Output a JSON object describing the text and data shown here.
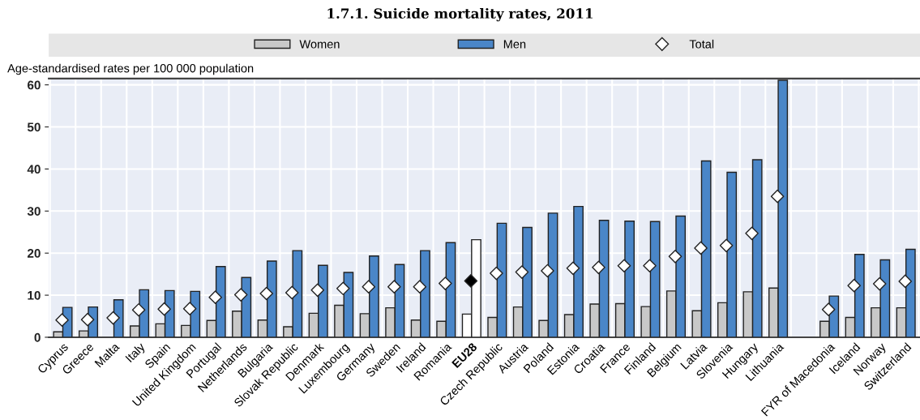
{
  "chart_data": {
    "type": "bar",
    "title": "1.7.1. Suicide mortality rates, 2011",
    "ylabel": "Age-standardised rates per 100 000 population",
    "categories": [
      "Cyprus",
      "Greece",
      "Malta",
      "Italy",
      "Spain",
      "United Kingdom",
      "Portugal",
      "Netherlands",
      "Bulgaria",
      "Slovak Republic",
      "Denmark",
      "Luxembourg",
      "Germany",
      "Sweden",
      "Ireland",
      "Romania",
      "EU28",
      "Czech Republic",
      "Austria",
      "Poland",
      "Estonia",
      "Croatia",
      "France",
      "Finland",
      "Belgium",
      "Latvia",
      "Slovenia",
      "Hungary",
      "Lithuania",
      null,
      "FYR of Macedonia",
      "Iceland",
      "Norway",
      "Switzerland"
    ],
    "series": [
      {
        "name": "Women",
        "color": "#c8c8c8",
        "colors": [
          "#c8c8c8",
          "#c8c8c8",
          "#c8c8c8",
          "#c8c8c8",
          "#c8c8c8",
          "#c8c8c8",
          "#c8c8c8",
          "#c8c8c8",
          "#c8c8c8",
          "#c8c8c8",
          "#c8c8c8",
          "#c8c8c8",
          "#c8c8c8",
          "#c8c8c8",
          "#c8c8c8",
          "#c8c8c8",
          "#ffffff",
          "#c8c8c8",
          "#c8c8c8",
          "#c8c8c8",
          "#c8c8c8",
          "#c8c8c8",
          "#c8c8c8",
          "#c8c8c8",
          "#c8c8c8",
          "#c8c8c8",
          "#c8c8c8",
          "#c8c8c8",
          "#c8c8c8",
          "#c8c8c8",
          "#c8c8c8",
          "#c8c8c8",
          "#c8c8c8",
          "#c8c8c8"
        ],
        "values": [
          1.3,
          1.5,
          null,
          2.7,
          3.2,
          2.8,
          4.0,
          6.2,
          4.1,
          2.5,
          5.7,
          7.6,
          5.6,
          7.0,
          4.1,
          3.8,
          5.5,
          4.7,
          7.2,
          4.0,
          5.4,
          7.9,
          8.0,
          7.3,
          11.0,
          6.3,
          8.2,
          10.8,
          11.7,
          null,
          3.8,
          4.7,
          7.0,
          7.0
        ]
      },
      {
        "name": "Men",
        "color": "#4a86c8",
        "colors": [
          "#4a86c8",
          "#4a86c8",
          "#4a86c8",
          "#4a86c8",
          "#4a86c8",
          "#4a86c8",
          "#4a86c8",
          "#4a86c8",
          "#4a86c8",
          "#4a86c8",
          "#4a86c8",
          "#4a86c8",
          "#4a86c8",
          "#4a86c8",
          "#4a86c8",
          "#4a86c8",
          "#ffffff",
          "#4a86c8",
          "#4a86c8",
          "#4a86c8",
          "#4a86c8",
          "#4a86c8",
          "#4a86c8",
          "#4a86c8",
          "#4a86c8",
          "#4a86c8",
          "#4a86c8",
          "#4a86c8",
          "#4a86c8",
          "#4a86c8",
          "#4a86c8",
          "#4a86c8",
          "#4a86c8",
          "#4a86c8"
        ],
        "values": [
          7.1,
          7.2,
          8.9,
          11.3,
          11.1,
          10.9,
          16.8,
          14.2,
          18.1,
          20.6,
          17.1,
          15.4,
          19.3,
          17.3,
          20.6,
          22.5,
          23.2,
          27.1,
          26.1,
          29.5,
          31.1,
          27.8,
          27.6,
          27.5,
          28.8,
          41.9,
          39.2,
          42.2,
          61.1,
          null,
          9.8,
          19.7,
          18.4,
          20.9
        ]
      },
      {
        "name": "Total",
        "type": "scatter",
        "marker": "diamond",
        "color": "#ffffff",
        "colors": [
          "#ffffff",
          "#ffffff",
          "#ffffff",
          "#ffffff",
          "#ffffff",
          "#ffffff",
          "#ffffff",
          "#ffffff",
          "#ffffff",
          "#ffffff",
          "#ffffff",
          "#ffffff",
          "#ffffff",
          "#ffffff",
          "#ffffff",
          "#ffffff",
          "#000000",
          "#ffffff",
          "#ffffff",
          "#ffffff",
          "#ffffff",
          "#ffffff",
          "#ffffff",
          "#ffffff",
          "#ffffff",
          "#ffffff",
          "#ffffff",
          "#ffffff",
          "#ffffff",
          "#ffffff",
          "#ffffff",
          "#ffffff",
          "#ffffff",
          "#ffffff"
        ],
        "values": [
          4.1,
          4.2,
          4.6,
          6.5,
          6.7,
          6.8,
          9.5,
          10.1,
          10.4,
          10.6,
          11.2,
          11.6,
          12.0,
          12.0,
          12.0,
          12.8,
          13.4,
          15.2,
          15.5,
          15.8,
          16.4,
          16.6,
          17.0,
          17.0,
          19.2,
          21.2,
          21.8,
          24.7,
          33.5,
          null,
          6.6,
          12.3,
          12.7,
          13.3
        ]
      }
    ],
    "ylim": [
      0,
      61.5
    ],
    "yticks": [
      0,
      10,
      20,
      30,
      40,
      50,
      60
    ],
    "grid": true,
    "legend": "top"
  }
}
